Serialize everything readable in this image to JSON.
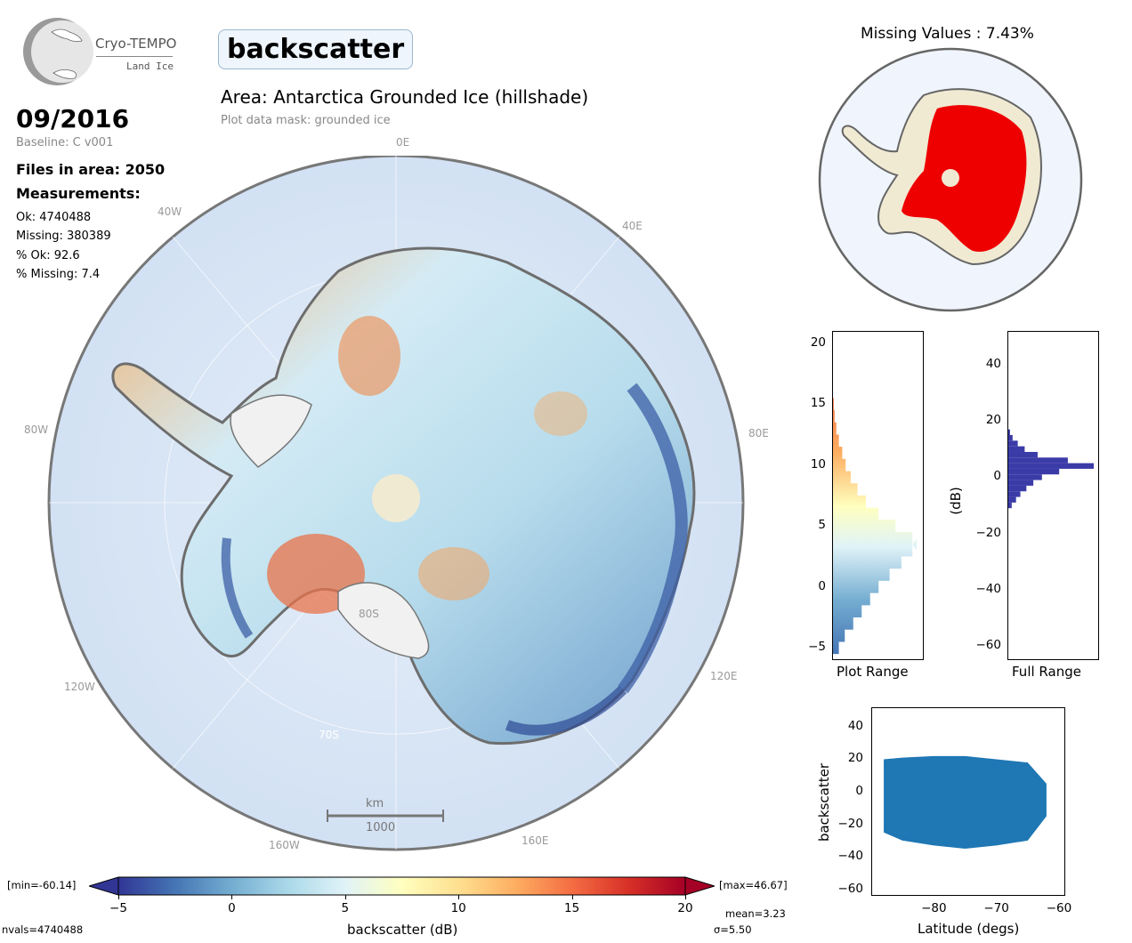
{
  "logo": {
    "name": "Cryo-TEMPO",
    "sub": "Land Ice"
  },
  "parameter_title": "backscatter",
  "date": "09/2016",
  "baseline": "Baseline: C v001",
  "area_title": "Area: Antarctica Grounded Ice (hillshade)",
  "mask_note": "Plot data mask: grounded ice",
  "files": "Files in area: 2050",
  "measurements": {
    "heading": "Measurements:",
    "ok": "Ok: 4740488",
    "missing": "Missing: 380389",
    "pct_ok": "% Ok: 92.6",
    "pct_missing": "% Missing: 7.4"
  },
  "map": {
    "grid_labels": {
      "lon_0e": "0E",
      "lon_40e": "40E",
      "lon_80e": "80E",
      "lon_120e": "120E",
      "lon_160e": "160E",
      "lon_40w": "40W",
      "lon_80w": "80W",
      "lon_120w": "120W",
      "lon_160w": "160W",
      "lat_80s": "80S",
      "lat_70s": "70S"
    },
    "scalebar": {
      "unit": "km",
      "value": "1000"
    }
  },
  "missing_panel": {
    "title": "Missing Values : 7.43%"
  },
  "colorbar": {
    "min_label": "[min=-60.14]",
    "max_label": "[max=46.67]",
    "ticks": [
      "−5",
      "0",
      "5",
      "10",
      "15",
      "20"
    ],
    "label": "backscatter (dB)",
    "mean": "mean=3.23",
    "sigma": "σ=5.50",
    "nvals": "nvals=4740488",
    "colors": [
      "#313695",
      "#4575b4",
      "#74add1",
      "#abd9e9",
      "#e0f3f8",
      "#ffffbf",
      "#fee090",
      "#fdae61",
      "#f46d43",
      "#d73027",
      "#a50026"
    ]
  },
  "hist_plot_range": {
    "xlabel": "Plot Range",
    "yticks": [
      "20",
      "15",
      "10",
      "5",
      "0",
      "−5"
    ]
  },
  "hist_full_range": {
    "xlabel": "Full Range",
    "ylabel": "(dB)",
    "yticks": [
      "40",
      "20",
      "0",
      "−20",
      "−40",
      "−60"
    ]
  },
  "scatter": {
    "xlabel": "Latitude (degs)",
    "ylabel": "backscatter",
    "yticks": [
      "40",
      "20",
      "0",
      "−20",
      "−40",
      "−60"
    ],
    "xticks": [
      "−80",
      "−70",
      "−60"
    ]
  },
  "chart_data": [
    {
      "type": "bar",
      "orientation": "horizontal",
      "xlabel": "Plot Range",
      "ylim": [
        -6,
        21
      ],
      "bin_centers_db": [
        -5,
        -4,
        -3,
        -2,
        -1,
        0,
        1,
        2,
        3,
        3.5,
        4,
        5,
        6,
        7,
        8,
        9,
        10,
        11,
        12,
        13,
        14,
        15,
        16
      ],
      "relative_counts": [
        0.08,
        0.15,
        0.25,
        0.35,
        0.45,
        0.55,
        0.68,
        0.82,
        0.95,
        1.0,
        0.95,
        0.75,
        0.55,
        0.4,
        0.3,
        0.22,
        0.16,
        0.12,
        0.08,
        0.05,
        0.03,
        0.02,
        0.005
      ]
    },
    {
      "type": "bar",
      "orientation": "horizontal",
      "xlabel": "Full Range",
      "ylabel": "(dB)",
      "ylim": [
        -65,
        52
      ],
      "bin_centers_db": [
        -10,
        -8,
        -6,
        -4,
        -2,
        0,
        2,
        4,
        6,
        8,
        10,
        12,
        14,
        16
      ],
      "relative_counts": [
        0.05,
        0.1,
        0.15,
        0.22,
        0.3,
        0.4,
        0.6,
        1.0,
        0.7,
        0.35,
        0.2,
        0.12,
        0.06,
        0.03
      ]
    },
    {
      "type": "scatter",
      "xlabel": "Latitude (degs)",
      "ylabel": "backscatter",
      "xlim": [
        -90,
        -59
      ],
      "ylim": [
        -64,
        52
      ],
      "color": "#1f77b4"
    }
  ]
}
